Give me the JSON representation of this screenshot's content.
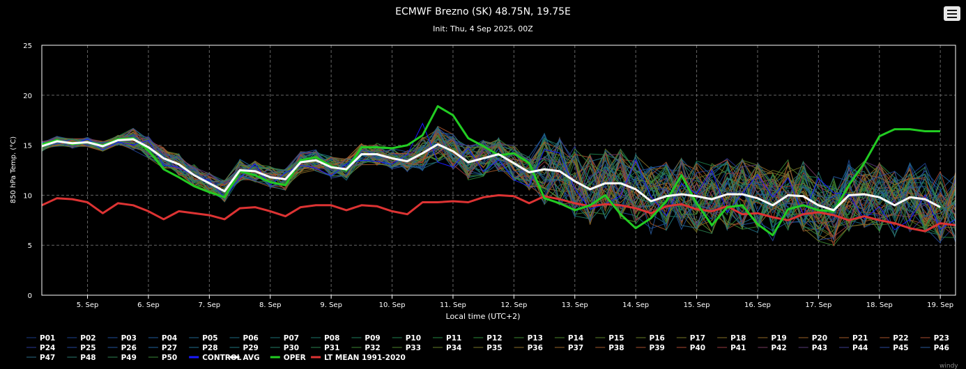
{
  "chart_data": {
    "type": "line",
    "title": "ECMWF Brezno (SK) 48.75N, 19.75E",
    "subtitle": "Init: Thu, 4 Sep 2025, 00Z",
    "xlabel": "Local time (UTC+2)",
    "ylabel": "850 hPa Temp. (°C)",
    "ylim": [
      0,
      25
    ],
    "yticks": [
      "0",
      "5",
      "10",
      "15",
      "20",
      "25"
    ],
    "xlim": [
      0,
      60
    ],
    "x_tick_labels": [
      "5. Sep",
      "6. Sep",
      "7. Sep",
      "8. Sep",
      "9. Sep",
      "10. Sep",
      "11. Sep",
      "12. Sep",
      "13. Sep",
      "14. Sep",
      "15. Sep",
      "16. Sep",
      "17. Sep",
      "18. Sep",
      "19. Sep"
    ],
    "x_tick_values": [
      3,
      7,
      11,
      15,
      19,
      23,
      27,
      31,
      35,
      39,
      43,
      47,
      51,
      55,
      59
    ],
    "grid": true,
    "x_unit_note": "x = hours since init / 6 (6-hourly steps to day 6, then 12-hourly)",
    "series": [
      {
        "name": "AVG",
        "color": "#ffffff",
        "x": [
          0,
          1,
          2,
          3,
          4,
          5,
          6,
          7,
          8,
          9,
          10,
          11,
          12,
          13,
          14,
          15,
          16,
          17,
          18,
          19,
          20,
          21,
          22,
          23,
          24,
          25,
          26,
          27,
          28,
          29,
          30,
          31,
          32,
          33,
          34,
          35,
          36,
          37,
          38,
          39,
          40,
          41,
          42,
          43,
          44,
          45,
          46,
          47,
          48,
          49,
          50,
          51,
          52,
          53,
          54,
          55,
          56,
          57,
          58,
          59,
          60
        ],
        "values": [
          14.9,
          15.4,
          15.2,
          15.3,
          14.9,
          15.5,
          15.6,
          14.8,
          13.7,
          13.1,
          12.0,
          11.2,
          10.4,
          12.5,
          12.4,
          11.8,
          11.6,
          13.3,
          13.5,
          12.8,
          12.6,
          14.1,
          14.1,
          13.7,
          13.4,
          14.2,
          15.1,
          14.4,
          13.3,
          13.7,
          14.1,
          13.2,
          12.3,
          12.6,
          12.4,
          11.4,
          10.6,
          11.2,
          11.2,
          10.6,
          9.4,
          9.9,
          10.1,
          9.9,
          9.6,
          10.1,
          10.1,
          9.7,
          9.0,
          10.0,
          9.9,
          9.0,
          8.5,
          10.0,
          10.1,
          9.8,
          9.0,
          9.8,
          9.6,
          8.8,
          null
        ]
      },
      {
        "name": "OPER",
        "color": "#22cc22",
        "x": [
          0,
          1,
          2,
          3,
          4,
          5,
          6,
          7,
          8,
          9,
          10,
          11,
          12,
          13,
          14,
          15,
          16,
          17,
          18,
          19,
          20,
          21,
          22,
          23,
          24,
          25,
          26,
          27,
          28,
          29,
          30,
          31,
          32,
          33,
          34,
          35,
          36,
          37,
          38,
          39,
          40,
          41,
          42,
          43,
          44,
          45,
          46,
          47,
          48,
          49,
          50,
          51,
          52,
          53,
          54,
          55,
          56,
          57,
          58,
          59,
          60
        ],
        "values": [
          15.1,
          15.5,
          15.1,
          15.3,
          15.0,
          15.6,
          15.7,
          14.5,
          12.6,
          11.8,
          10.9,
          10.3,
          9.8,
          12.4,
          12.0,
          11.3,
          11.0,
          13.5,
          13.8,
          12.9,
          12.5,
          14.8,
          14.8,
          14.7,
          15.0,
          16.0,
          18.9,
          18.0,
          15.7,
          14.9,
          14.0,
          14.2,
          13.2,
          9.7,
          9.2,
          8.5,
          9.0,
          10.0,
          8.1,
          6.7,
          7.7,
          9.4,
          12.0,
          9.2,
          7.0,
          8.8,
          9.0,
          7.1,
          6.0,
          8.6,
          9.0,
          8.5,
          8.4,
          11.0,
          13.2,
          15.9,
          16.6,
          16.6,
          16.4,
          16.4,
          null
        ]
      },
      {
        "name": "LT MEAN 1991-2020",
        "color": "#dd3333",
        "x": [
          0,
          1,
          2,
          3,
          4,
          5,
          6,
          7,
          8,
          9,
          10,
          11,
          12,
          13,
          14,
          15,
          16,
          17,
          18,
          19,
          20,
          21,
          22,
          23,
          24,
          25,
          26,
          27,
          28,
          29,
          30,
          31,
          32,
          33,
          34,
          35,
          36,
          37,
          38,
          39,
          40,
          41,
          42,
          43,
          44,
          45,
          46,
          47,
          48,
          49,
          50,
          51,
          52,
          53,
          54,
          55,
          56,
          57,
          58,
          59,
          60
        ],
        "values": [
          9.0,
          9.7,
          9.6,
          9.3,
          8.2,
          9.2,
          9.0,
          8.4,
          7.6,
          8.4,
          8.2,
          8.0,
          7.6,
          8.7,
          8.8,
          8.4,
          7.9,
          8.8,
          9.0,
          9.0,
          8.5,
          9.0,
          8.9,
          8.4,
          8.1,
          9.3,
          9.3,
          9.4,
          9.3,
          9.8,
          10.0,
          9.9,
          9.2,
          9.9,
          9.6,
          9.2,
          8.9,
          9.1,
          9.0,
          8.7,
          8.2,
          8.9,
          9.1,
          8.6,
          8.4,
          8.9,
          8.1,
          8.2,
          7.8,
          7.5,
          8.1,
          8.3,
          8.0,
          7.5,
          7.9,
          7.5,
          7.2,
          6.7,
          6.4,
          7.2,
          7.0
        ]
      },
      {
        "name": "CONTROL",
        "color": "#1a1aff"
      }
    ],
    "ensemble_members": {
      "count": 50,
      "note": "P01–P50 spread roughly around AVG: ±1 °C early, ±1.5 °C day 6–8, up to ±5 °C after day 9"
    }
  },
  "legend": {
    "labels": [
      "P01",
      "P02",
      "P03",
      "P04",
      "P05",
      "P06",
      "P07",
      "P08",
      "P09",
      "P10",
      "P11",
      "P12",
      "P13",
      "P14",
      "P15",
      "P16",
      "P17",
      "P18",
      "P19",
      "P20",
      "P21",
      "P22",
      "P23",
      "P24",
      "P25",
      "P26",
      "P27",
      "P28",
      "P29",
      "P30",
      "P31",
      "P32",
      "P33",
      "P34",
      "P35",
      "P36",
      "P37",
      "P38",
      "P39",
      "P40",
      "P41",
      "P42",
      "P43",
      "P44",
      "P45",
      "P46",
      "P47",
      "P48",
      "P49",
      "P50",
      "CONTROL",
      "AVG",
      "OPER",
      "LT MEAN 1991-2020"
    ],
    "member_colors": [
      "#1c3d8a",
      "#1e4494",
      "#20509e",
      "#205c9e",
      "#1f6690",
      "#1c6d83",
      "#1c7477",
      "#1d7a6b",
      "#1e805e",
      "#208550",
      "#258a42",
      "#2c8c38",
      "#3a8a30",
      "#4a882c",
      "#5a852a",
      "#6a8028",
      "#7a7a28",
      "#887228",
      "#936a28",
      "#9c6228",
      "#a45a2a",
      "#aa542c",
      "#ad4e30",
      "#2a3a9a",
      "#24489e",
      "#2256a0",
      "#2064a0",
      "#1f7090",
      "#1e7880",
      "#228066",
      "#2a8450",
      "#3c8834",
      "#4e862c",
      "#648028",
      "#7a7828",
      "#8c6e28",
      "#9a6428",
      "#a45a2a",
      "#aa502e",
      "#b04a32",
      "#9c3a40",
      "#7a3a60",
      "#5a3a7a",
      "#3c3c90",
      "#2a4aa0",
      "#2a5c9e",
      "#2a6e88",
      "#2a7c70",
      "#2e8454",
      "#3a8a3a"
    ]
  },
  "menu": {
    "icon": "hamburger-menu-icon"
  },
  "watermark": {
    "text": "windy"
  }
}
